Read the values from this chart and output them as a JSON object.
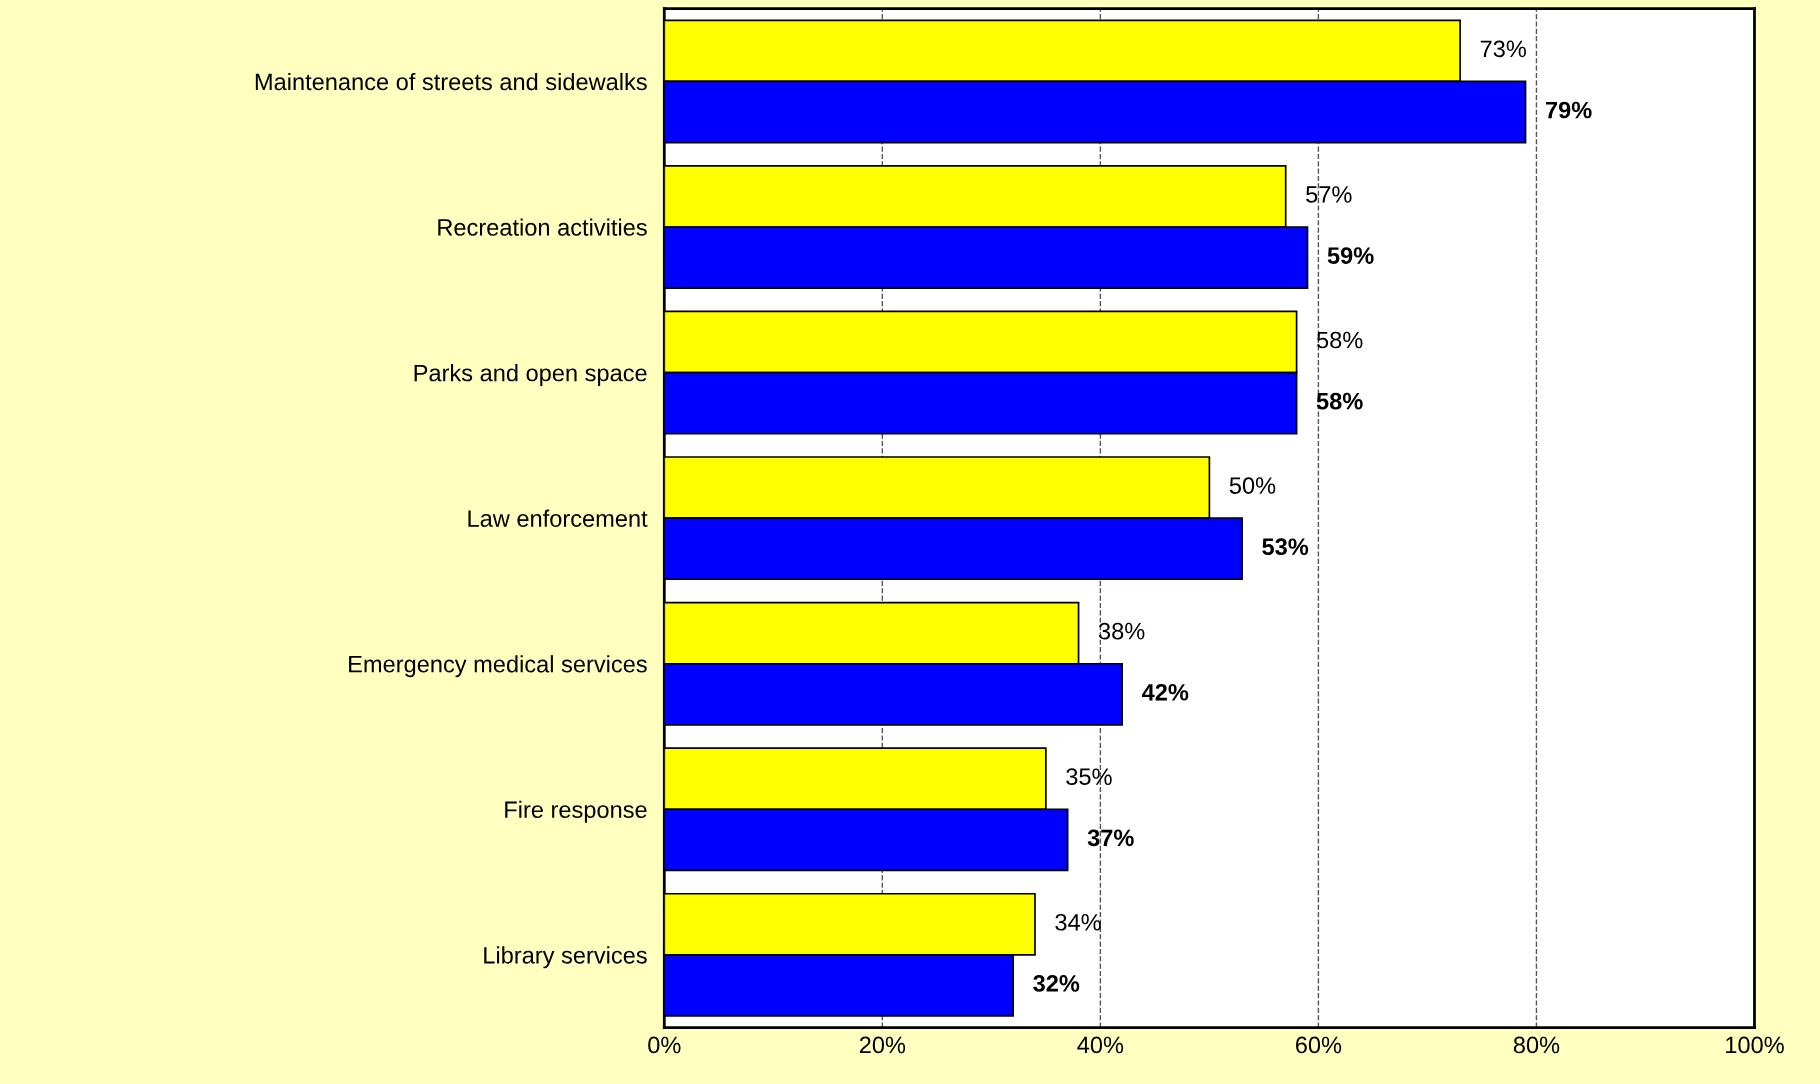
{
  "chart_data": {
    "type": "bar",
    "orientation": "horizontal",
    "categories": [
      "Maintenance of streets and sidewalks",
      "Recreation activities",
      "Parks and open space",
      "Law enforcement",
      "Emergency medical services",
      "Fire response",
      "Library services"
    ],
    "series": [
      {
        "color": "#ffff00",
        "values": [
          73,
          57,
          58,
          50,
          38,
          35,
          34
        ],
        "value_labels": [
          "73%",
          "57%",
          "58%",
          "50%",
          "38%",
          "35%",
          "34%"
        ]
      },
      {
        "color": "#0000ff",
        "values": [
          79,
          59,
          58,
          53,
          42,
          37,
          32
        ],
        "value_labels": [
          "79%",
          "59%",
          "58%",
          "53%",
          "42%",
          "37%",
          "32%"
        ]
      }
    ],
    "xlim": [
      0,
      100
    ],
    "xticks": [
      {
        "value": 0,
        "label": "0%"
      },
      {
        "value": 20,
        "label": "20%"
      },
      {
        "value": 40,
        "label": "40%"
      },
      {
        "value": 60,
        "label": "60%"
      },
      {
        "value": 80,
        "label": "80%"
      },
      {
        "value": 100,
        "label": "100%"
      }
    ],
    "grid": "x",
    "legend": false
  }
}
